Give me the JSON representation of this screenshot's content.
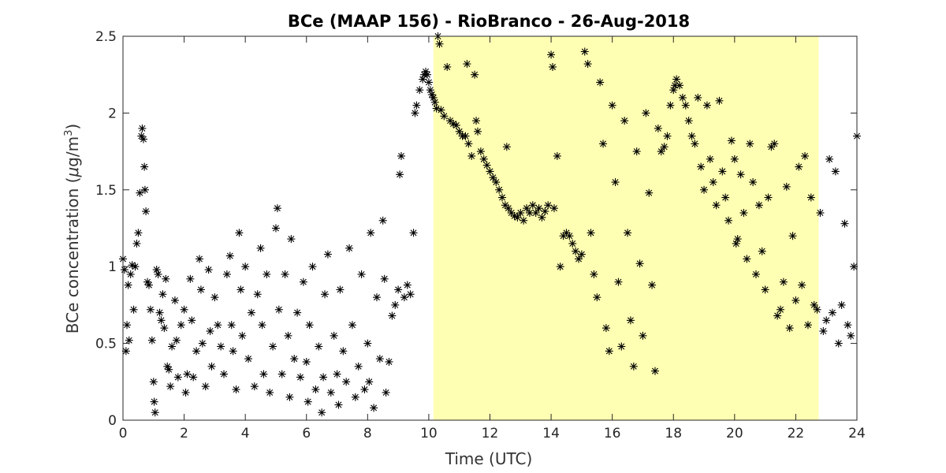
{
  "chart_data": {
    "type": "scatter",
    "title": "BCe (MAAP 156) - RioBranco - 26-Aug-2018",
    "xlabel": "Time (UTC)",
    "ylabel_prefix": "BCe concentration (",
    "ylabel_mu": "μ",
    "ylabel_unit": "g/m",
    "ylabel_sup": "3",
    "ylabel_suffix": ")",
    "xlim": [
      0,
      24
    ],
    "ylim": [
      0,
      2.5
    ],
    "xticks": [
      0,
      2,
      4,
      6,
      8,
      10,
      12,
      14,
      16,
      18,
      20,
      22,
      24
    ],
    "yticks": [
      0,
      0.5,
      1,
      1.5,
      2,
      2.5
    ],
    "marker": "asterisk",
    "marker_color": "#000000",
    "grid": false,
    "shaded_region": {
      "x_start": 10.15,
      "x_end": 22.75,
      "color": "#ffffb3"
    },
    "series": [
      {
        "points": [
          [
            0.0,
            1.05
          ],
          [
            0.05,
            0.98
          ],
          [
            0.1,
            0.45
          ],
          [
            0.13,
            0.62
          ],
          [
            0.17,
            0.88
          ],
          [
            0.2,
            0.52
          ],
          [
            0.25,
            0.95
          ],
          [
            0.3,
            1.01
          ],
          [
            0.35,
            0.72
          ],
          [
            0.4,
            1.0
          ],
          [
            0.45,
            1.15
          ],
          [
            0.5,
            1.22
          ],
          [
            0.55,
            1.48
          ],
          [
            0.6,
            1.85
          ],
          [
            0.63,
            1.9
          ],
          [
            0.67,
            1.83
          ],
          [
            0.7,
            1.65
          ],
          [
            0.72,
            1.5
          ],
          [
            0.75,
            1.36
          ],
          [
            0.8,
            0.9
          ],
          [
            0.85,
            0.88
          ],
          [
            0.9,
            0.72
          ],
          [
            0.95,
            0.52
          ],
          [
            1.0,
            0.25
          ],
          [
            1.02,
            0.12
          ],
          [
            1.05,
            0.05
          ],
          [
            1.1,
            0.98
          ],
          [
            1.15,
            0.95
          ],
          [
            1.2,
            0.7
          ],
          [
            1.25,
            0.65
          ],
          [
            1.3,
            0.82
          ],
          [
            1.35,
            0.6
          ],
          [
            1.4,
            0.92
          ],
          [
            1.45,
            0.35
          ],
          [
            1.5,
            0.33
          ],
          [
            1.55,
            0.22
          ],
          [
            1.6,
            0.48
          ],
          [
            1.7,
            0.78
          ],
          [
            1.75,
            0.52
          ],
          [
            1.8,
            0.28
          ],
          [
            1.9,
            0.62
          ],
          [
            2.0,
            0.72
          ],
          [
            2.05,
            0.18
          ],
          [
            2.1,
            0.3
          ],
          [
            2.2,
            0.92
          ],
          [
            2.25,
            0.65
          ],
          [
            2.3,
            0.28
          ],
          [
            2.4,
            0.45
          ],
          [
            2.5,
            1.05
          ],
          [
            2.55,
            0.85
          ],
          [
            2.6,
            0.5
          ],
          [
            2.7,
            0.22
          ],
          [
            2.8,
            0.98
          ],
          [
            2.85,
            0.58
          ],
          [
            2.9,
            0.35
          ],
          [
            3.0,
            0.8
          ],
          [
            3.1,
            0.62
          ],
          [
            3.2,
            0.48
          ],
          [
            3.3,
            0.3
          ],
          [
            3.4,
            0.95
          ],
          [
            3.5,
            1.07
          ],
          [
            3.55,
            0.62
          ],
          [
            3.6,
            0.45
          ],
          [
            3.7,
            0.2
          ],
          [
            3.8,
            1.22
          ],
          [
            3.85,
            0.85
          ],
          [
            3.9,
            0.55
          ],
          [
            4.0,
            1.0
          ],
          [
            4.1,
            0.4
          ],
          [
            4.2,
            0.7
          ],
          [
            4.3,
            0.22
          ],
          [
            4.4,
            0.82
          ],
          [
            4.5,
            1.12
          ],
          [
            4.55,
            0.62
          ],
          [
            4.6,
            0.3
          ],
          [
            4.7,
            0.95
          ],
          [
            4.8,
            0.18
          ],
          [
            4.9,
            0.48
          ],
          [
            5.0,
            1.25
          ],
          [
            5.05,
            1.38
          ],
          [
            5.1,
            0.72
          ],
          [
            5.2,
            0.3
          ],
          [
            5.3,
            0.95
          ],
          [
            5.4,
            0.55
          ],
          [
            5.45,
            0.15
          ],
          [
            5.5,
            1.18
          ],
          [
            5.6,
            0.4
          ],
          [
            5.7,
            0.7
          ],
          [
            5.8,
            0.28
          ],
          [
            5.9,
            0.9
          ],
          [
            6.0,
            0.38
          ],
          [
            6.05,
            0.12
          ],
          [
            6.1,
            0.62
          ],
          [
            6.2,
            1.0
          ],
          [
            6.3,
            0.2
          ],
          [
            6.4,
            0.48
          ],
          [
            6.5,
            0.05
          ],
          [
            6.55,
            0.28
          ],
          [
            6.6,
            0.82
          ],
          [
            6.7,
            1.08
          ],
          [
            6.8,
            0.18
          ],
          [
            6.9,
            0.55
          ],
          [
            7.0,
            0.3
          ],
          [
            7.05,
            0.1
          ],
          [
            7.1,
            0.85
          ],
          [
            7.2,
            0.45
          ],
          [
            7.3,
            0.25
          ],
          [
            7.4,
            1.12
          ],
          [
            7.5,
            0.62
          ],
          [
            7.6,
            0.15
          ],
          [
            7.7,
            0.35
          ],
          [
            7.8,
            0.95
          ],
          [
            7.9,
            0.2
          ],
          [
            8.0,
            0.5
          ],
          [
            8.05,
            0.25
          ],
          [
            8.1,
            1.22
          ],
          [
            8.2,
            0.08
          ],
          [
            8.3,
            0.8
          ],
          [
            8.4,
            0.4
          ],
          [
            8.5,
            1.3
          ],
          [
            8.55,
            0.92
          ],
          [
            8.6,
            0.18
          ],
          [
            8.7,
            0.38
          ],
          [
            8.8,
            0.68
          ],
          [
            8.9,
            0.75
          ],
          [
            9.0,
            0.85
          ],
          [
            9.05,
            1.6
          ],
          [
            9.1,
            1.72
          ],
          [
            9.2,
            0.8
          ],
          [
            9.3,
            0.88
          ],
          [
            9.4,
            0.82
          ],
          [
            9.5,
            1.22
          ],
          [
            9.55,
            2.0
          ],
          [
            9.6,
            2.05
          ],
          [
            9.7,
            2.15
          ],
          [
            9.8,
            2.22
          ],
          [
            9.85,
            2.25
          ],
          [
            9.9,
            2.27
          ],
          [
            9.95,
            2.25
          ],
          [
            10.0,
            2.2
          ],
          [
            10.05,
            2.15
          ],
          [
            10.1,
            2.12
          ],
          [
            10.15,
            2.1
          ],
          [
            10.2,
            2.07
          ],
          [
            10.25,
            2.03
          ],
          [
            10.3,
            2.5
          ],
          [
            10.35,
            2.45
          ],
          [
            10.4,
            2.02
          ],
          [
            10.5,
            1.98
          ],
          [
            10.6,
            2.3
          ],
          [
            10.7,
            1.95
          ],
          [
            10.8,
            1.93
          ],
          [
            10.9,
            1.92
          ],
          [
            11.0,
            1.88
          ],
          [
            11.1,
            1.85
          ],
          [
            11.2,
            1.85
          ],
          [
            11.25,
            2.32
          ],
          [
            11.3,
            1.8
          ],
          [
            11.4,
            1.72
          ],
          [
            11.5,
            2.25
          ],
          [
            11.55,
            1.95
          ],
          [
            11.6,
            1.88
          ],
          [
            11.7,
            1.75
          ],
          [
            11.8,
            1.7
          ],
          [
            11.9,
            1.66
          ],
          [
            12.0,
            1.62
          ],
          [
            12.1,
            1.58
          ],
          [
            12.2,
            1.55
          ],
          [
            12.3,
            1.5
          ],
          [
            12.4,
            1.45
          ],
          [
            12.5,
            1.4
          ],
          [
            12.55,
            1.78
          ],
          [
            12.6,
            1.38
          ],
          [
            12.7,
            1.35
          ],
          [
            12.8,
            1.33
          ],
          [
            12.9,
            1.32
          ],
          [
            13.0,
            1.35
          ],
          [
            13.1,
            1.3
          ],
          [
            13.2,
            1.38
          ],
          [
            13.3,
            1.35
          ],
          [
            13.4,
            1.4
          ],
          [
            13.5,
            1.35
          ],
          [
            13.6,
            1.38
          ],
          [
            13.7,
            1.32
          ],
          [
            13.8,
            1.36
          ],
          [
            13.9,
            1.4
          ],
          [
            14.0,
            2.38
          ],
          [
            14.05,
            2.3
          ],
          [
            14.1,
            1.38
          ],
          [
            14.2,
            1.72
          ],
          [
            14.3,
            1.0
          ],
          [
            14.4,
            1.2
          ],
          [
            14.5,
            1.22
          ],
          [
            14.6,
            1.2
          ],
          [
            14.7,
            1.15
          ],
          [
            14.8,
            1.1
          ],
          [
            14.9,
            1.05
          ],
          [
            15.0,
            1.08
          ],
          [
            15.1,
            2.4
          ],
          [
            15.2,
            2.32
          ],
          [
            15.3,
            1.22
          ],
          [
            15.4,
            0.95
          ],
          [
            15.5,
            0.8
          ],
          [
            15.6,
            2.2
          ],
          [
            15.7,
            1.8
          ],
          [
            15.8,
            0.6
          ],
          [
            15.9,
            0.45
          ],
          [
            16.0,
            2.05
          ],
          [
            16.1,
            1.55
          ],
          [
            16.2,
            0.9
          ],
          [
            16.3,
            0.48
          ],
          [
            16.4,
            1.95
          ],
          [
            16.5,
            1.22
          ],
          [
            16.6,
            0.65
          ],
          [
            16.7,
            0.35
          ],
          [
            16.8,
            1.75
          ],
          [
            16.9,
            1.02
          ],
          [
            17.0,
            0.55
          ],
          [
            17.1,
            2.0
          ],
          [
            17.2,
            1.48
          ],
          [
            17.3,
            0.88
          ],
          [
            17.4,
            0.32
          ],
          [
            17.5,
            1.9
          ],
          [
            17.6,
            1.75
          ],
          [
            17.7,
            1.78
          ],
          [
            17.8,
            1.85
          ],
          [
            17.9,
            2.05
          ],
          [
            18.0,
            2.15
          ],
          [
            18.05,
            2.18
          ],
          [
            18.1,
            2.22
          ],
          [
            18.2,
            2.18
          ],
          [
            18.3,
            2.1
          ],
          [
            18.4,
            2.05
          ],
          [
            18.5,
            1.95
          ],
          [
            18.6,
            1.85
          ],
          [
            18.7,
            1.8
          ],
          [
            18.8,
            2.1
          ],
          [
            18.9,
            1.65
          ],
          [
            19.0,
            1.5
          ],
          [
            19.1,
            2.05
          ],
          [
            19.2,
            1.7
          ],
          [
            19.3,
            1.55
          ],
          [
            19.4,
            1.4
          ],
          [
            19.5,
            2.08
          ],
          [
            19.6,
            1.62
          ],
          [
            19.7,
            1.45
          ],
          [
            19.8,
            1.3
          ],
          [
            19.9,
            1.82
          ],
          [
            20.0,
            1.7
          ],
          [
            20.05,
            1.15
          ],
          [
            20.1,
            1.18
          ],
          [
            20.2,
            1.6
          ],
          [
            20.3,
            1.35
          ],
          [
            20.4,
            1.05
          ],
          [
            20.5,
            1.8
          ],
          [
            20.6,
            1.55
          ],
          [
            20.7,
            0.95
          ],
          [
            20.8,
            1.4
          ],
          [
            20.9,
            1.1
          ],
          [
            21.0,
            0.85
          ],
          [
            21.1,
            1.45
          ],
          [
            21.2,
            1.78
          ],
          [
            21.3,
            1.8
          ],
          [
            21.4,
            0.68
          ],
          [
            21.5,
            0.72
          ],
          [
            21.6,
            0.9
          ],
          [
            21.7,
            1.52
          ],
          [
            21.8,
            0.6
          ],
          [
            21.9,
            1.2
          ],
          [
            22.0,
            0.78
          ],
          [
            22.1,
            1.65
          ],
          [
            22.2,
            0.88
          ],
          [
            22.3,
            1.72
          ],
          [
            22.4,
            0.62
          ],
          [
            22.5,
            1.45
          ],
          [
            22.6,
            0.75
          ],
          [
            22.7,
            0.72
          ],
          [
            22.8,
            1.35
          ],
          [
            22.9,
            0.58
          ],
          [
            23.0,
            0.65
          ],
          [
            23.1,
            1.7
          ],
          [
            23.2,
            0.7
          ],
          [
            23.3,
            1.62
          ],
          [
            23.4,
            0.5
          ],
          [
            23.5,
            0.75
          ],
          [
            23.6,
            1.28
          ],
          [
            23.7,
            0.62
          ],
          [
            23.8,
            0.55
          ],
          [
            23.9,
            1.0
          ],
          [
            24.0,
            1.85
          ]
        ]
      }
    ]
  }
}
